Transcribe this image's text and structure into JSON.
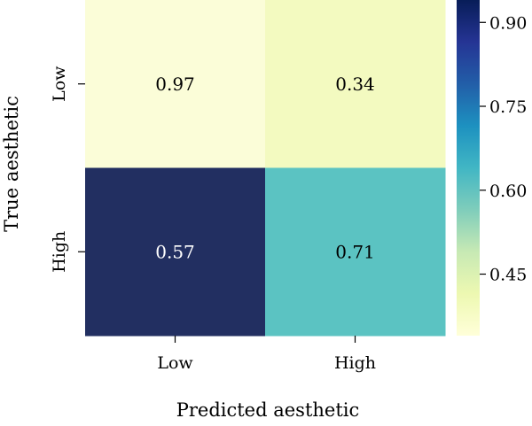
{
  "chart_data": {
    "type": "heatmap",
    "title": "",
    "xlabel": "Predicted aesthetic",
    "ylabel": "True aesthetic",
    "x_categories": [
      "Low",
      "High"
    ],
    "y_categories": [
      "Low",
      "High"
    ],
    "values": [
      [
        0.97,
        0.34
      ],
      [
        0.57,
        0.71
      ]
    ],
    "cell_labels": [
      [
        "0.97",
        "0.34"
      ],
      [
        "0.57",
        "0.71"
      ]
    ],
    "cell_colors": [
      [
        "#fbfdd8",
        "#f3fac0"
      ],
      [
        "#222f61",
        "#5bc3c2"
      ]
    ],
    "cell_label_colors": [
      [
        "#000000",
        "#000000"
      ],
      [
        "#ffffff",
        "#000000"
      ]
    ],
    "colorbar": {
      "range": [
        0.34,
        0.94
      ],
      "ticks": [
        0.45,
        0.6,
        0.75,
        0.9
      ],
      "tick_labels": [
        "0.45",
        "0.60",
        "0.75",
        "0.90"
      ],
      "colormap": "YlGnBu",
      "gradient_stops": [
        "#ffffd9",
        "#edf8b1",
        "#c7e9b4",
        "#7fcdbb",
        "#41b6c4",
        "#1d91c0",
        "#225ea8",
        "#253494",
        "#081d58"
      ]
    }
  }
}
